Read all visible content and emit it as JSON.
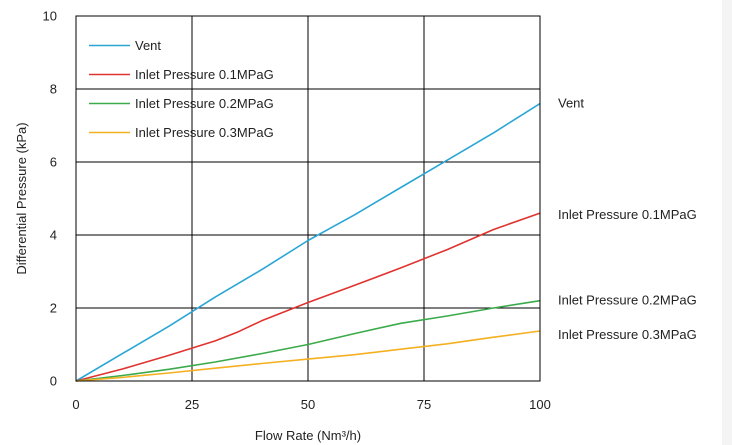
{
  "chart_data": {
    "type": "line",
    "title": "",
    "xlabel": "Flow Rate (Nm³/h)",
    "ylabel": "Differential Pressure (kPa)",
    "xlim": [
      0,
      100
    ],
    "ylim": [
      0,
      10
    ],
    "xticks": [
      0,
      25,
      50,
      75,
      100
    ],
    "yticks": [
      0,
      2,
      4,
      6,
      8,
      10
    ],
    "grid": true,
    "legend_position": "top-left",
    "series": [
      {
        "name": "Vent",
        "color": "#2aa6d5",
        "end_label": "Vent",
        "points": [
          [
            0,
            0
          ],
          [
            10,
            0.75
          ],
          [
            20,
            1.5
          ],
          [
            30,
            2.3
          ],
          [
            40,
            3.05
          ],
          [
            50,
            3.85
          ],
          [
            55,
            4.2
          ],
          [
            60,
            4.55
          ],
          [
            70,
            5.3
          ],
          [
            80,
            6.05
          ],
          [
            90,
            6.8
          ],
          [
            100,
            7.6
          ]
        ]
      },
      {
        "name": "Inlet Pressure 0.1MPaG",
        "color": "#e0332f",
        "end_label": "Inlet Pressure 0.1MPaG",
        "points": [
          [
            0,
            0
          ],
          [
            10,
            0.33
          ],
          [
            20,
            0.7
          ],
          [
            30,
            1.1
          ],
          [
            35,
            1.35
          ],
          [
            40,
            1.65
          ],
          [
            50,
            2.15
          ],
          [
            60,
            2.62
          ],
          [
            70,
            3.1
          ],
          [
            80,
            3.6
          ],
          [
            90,
            4.15
          ],
          [
            100,
            4.6
          ]
        ]
      },
      {
        "name": "Inlet Pressure 0.2MPaG",
        "color": "#3aaa4a",
        "end_label": "Inlet Pressure 0.2MPaG",
        "points": [
          [
            0,
            0
          ],
          [
            10,
            0.15
          ],
          [
            20,
            0.32
          ],
          [
            30,
            0.52
          ],
          [
            40,
            0.75
          ],
          [
            50,
            1.0
          ],
          [
            60,
            1.3
          ],
          [
            70,
            1.58
          ],
          [
            80,
            1.78
          ],
          [
            90,
            2.0
          ],
          [
            100,
            2.2
          ]
        ]
      },
      {
        "name": "Inlet Pressure 0.3MPaG",
        "color": "#f5b021",
        "end_label": "Inlet Pressure 0.3MPaG",
        "points": [
          [
            0,
            0
          ],
          [
            10,
            0.1
          ],
          [
            20,
            0.22
          ],
          [
            30,
            0.35
          ],
          [
            40,
            0.48
          ],
          [
            50,
            0.6
          ],
          [
            60,
            0.72
          ],
          [
            70,
            0.87
          ],
          [
            80,
            1.02
          ],
          [
            90,
            1.2
          ],
          [
            100,
            1.37
          ]
        ]
      }
    ]
  }
}
